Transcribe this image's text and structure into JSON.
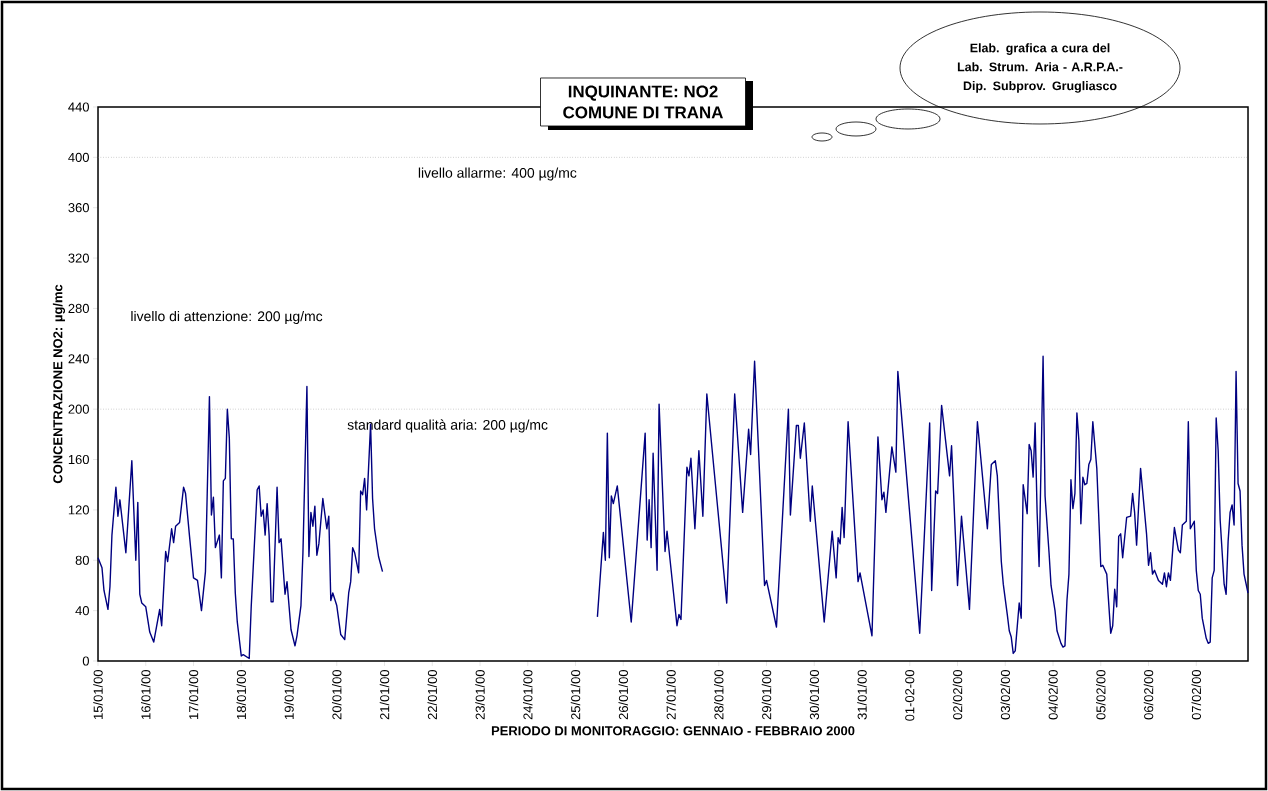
{
  "chart_data": {
    "type": "line",
    "title": "INQUINANTE: NO2",
    "subtitle": "COMUNE DI TRANA",
    "xlabel": "PERIODO DI MONITORAGGIO: GENNAIO - FEBBRAIO 2000",
    "ylabel": "CONCENTRAZIONE NO2:  µg/mc",
    "annotations": [
      "livello di attenzione: 200  µg/mc",
      "Elab. grafica a cura del Lab. Strum. Aria - A.R.P.A.- Dip. Subprov. Grugliasco"
    ],
    "xlim": [
      "2000-01-15T00:00",
      "2000-02-08T02:00"
    ],
    "ylim": [
      0,
      440
    ],
    "yticks": [
      0,
      40,
      80,
      120,
      160,
      200,
      240,
      280,
      320,
      360,
      400,
      440
    ],
    "xticks": [
      {
        "value": "2000-01-15",
        "label": "15/01/00"
      },
      {
        "value": "2000-01-16",
        "label": "16/01/00"
      },
      {
        "value": "2000-01-17",
        "label": "17/01/00"
      },
      {
        "value": "2000-01-18",
        "label": "18/01/00"
      },
      {
        "value": "2000-01-19",
        "label": "19/01/00"
      },
      {
        "value": "2000-01-20",
        "label": "20/01/00"
      },
      {
        "value": "2000-01-21",
        "label": "21/01/00"
      },
      {
        "value": "2000-01-22",
        "label": "22/01/00"
      },
      {
        "value": "2000-01-23",
        "label": "23/01/00"
      },
      {
        "value": "2000-01-24",
        "label": "24/01/00"
      },
      {
        "value": "2000-01-25",
        "label": "25/01/00"
      },
      {
        "value": "2000-01-26",
        "label": "26/01/00"
      },
      {
        "value": "2000-01-27",
        "label": "27/01/00"
      },
      {
        "value": "2000-01-28",
        "label": "28/01/00"
      },
      {
        "value": "2000-01-29",
        "label": "29/01/00"
      },
      {
        "value": "2000-01-30",
        "label": "30/01/00"
      },
      {
        "value": "2000-01-31",
        "label": "31/01/00"
      },
      {
        "value": "2000-02-01",
        "label": "01-02-00"
      },
      {
        "value": "2000-02-02",
        "label": "02/02/00"
      },
      {
        "value": "2000-02-03",
        "label": "03/02/00"
      },
      {
        "value": "2000-02-04",
        "label": "04/02/00"
      },
      {
        "value": "2000-02-05",
        "label": "05/02/00"
      },
      {
        "value": "2000-02-06",
        "label": "06/02/00"
      },
      {
        "value": "2000-02-07",
        "label": "07/02/00"
      }
    ],
    "ref_lines": [
      {
        "axis": "y",
        "value": 400,
        "label": "livello allarme: 400 µg/mc",
        "color": "#808080",
        "line_style": "dotted"
      },
      {
        "axis": "y",
        "value": 200,
        "label": "standard qualità aria: 200 µg/mc",
        "color": "#808080",
        "line_style": "dotted"
      }
    ],
    "series": [
      {
        "color": "#000080",
        "x": [
          "2000-01-15T00:00",
          "2000-01-15T02:00",
          "2000-01-15T03:00",
          "2000-01-15T05:00",
          "2000-01-15T06:00",
          "2000-01-15T07:00",
          "2000-01-15T09:00",
          "2000-01-15T10:00",
          "2000-01-15T11:00",
          "2000-01-15T14:00",
          "2000-01-15T15:00",
          "2000-01-15T17:00",
          "2000-01-15T19:00",
          "2000-01-15T20:00",
          "2000-01-15T21:00",
          "2000-01-15T22:00",
          "2000-01-16T00:00",
          "2000-01-16T02:00",
          "2000-01-16T04:00",
          "2000-01-16T07:00",
          "2000-01-16T08:00",
          "2000-01-16T10:00",
          "2000-01-16T11:00",
          "2000-01-16T13:00",
          "2000-01-16T14:00",
          "2000-01-16T15:00",
          "2000-01-16T17:00",
          "2000-01-16T19:00",
          "2000-01-16T20:00",
          "2000-01-16T22:00",
          "2000-01-17T00:00",
          "2000-01-17T02:00",
          "2000-01-17T04:00",
          "2000-01-17T06:00",
          "2000-01-17T08:00",
          "2000-01-17T09:00",
          "2000-01-17T10:00",
          "2000-01-17T11:00",
          "2000-01-17T13:00",
          "2000-01-17T14:00",
          "2000-01-17T15:00",
          "2000-01-17T16:00",
          "2000-01-17T17:00",
          "2000-01-17T18:00",
          "2000-01-17T19:00",
          "2000-01-17T20:00",
          "2000-01-17T21:00",
          "2000-01-17T22:00",
          "2000-01-18T00:00",
          "2000-01-18T01:00",
          "2000-01-18T04:00",
          "2000-01-18T05:00",
          "2000-01-18T08:00",
          "2000-01-18T09:00",
          "2000-01-18T10:00",
          "2000-01-18T11:00",
          "2000-01-18T12:00",
          "2000-01-18T13:00",
          "2000-01-18T14:00",
          "2000-01-18T15:00",
          "2000-01-18T16:00",
          "2000-01-18T18:00",
          "2000-01-18T19:00",
          "2000-01-18T20:00",
          "2000-01-18T22:00",
          "2000-01-18T23:00",
          "2000-01-19T01:00",
          "2000-01-19T03:00",
          "2000-01-19T04:00",
          "2000-01-19T06:00",
          "2000-01-19T07:00",
          "2000-01-19T09:00",
          "2000-01-19T10:00",
          "2000-01-19T11:00",
          "2000-01-19T12:00",
          "2000-01-19T13:00",
          "2000-01-19T14:00",
          "2000-01-19T15:00",
          "2000-01-19T17:00",
          "2000-01-19T19:00",
          "2000-01-19T20:00",
          "2000-01-19T21:00",
          "2000-01-19T22:00",
          "2000-01-20T00:00",
          "2000-01-20T02:00",
          "2000-01-20T04:00",
          "2000-01-20T06:00",
          "2000-01-20T07:00",
          "2000-01-20T08:00",
          "2000-01-20T09:00",
          "2000-01-20T11:00",
          "2000-01-20T12:00",
          "2000-01-20T13:00",
          "2000-01-20T14:00",
          "2000-01-20T15:00",
          "2000-01-20T17:00",
          "2000-01-20T18:00",
          "2000-01-20T19:00",
          "2000-01-20T21:00",
          "2000-01-20T23:00"
        ],
        "values": [
          82,
          74,
          56,
          41,
          59,
          100,
          138,
          115,
          128,
          86,
          110,
          159,
          80,
          126,
          53,
          46,
          43,
          23,
          15,
          41,
          28,
          87,
          79,
          105,
          94,
          107,
          110,
          138,
          133,
          99,
          66,
          64,
          40,
          71,
          210,
          116,
          130,
          90,
          100,
          66,
          143,
          145,
          200,
          177,
          97,
          97,
          54,
          31,
          4,
          5,
          2,
          43,
          136,
          139,
          115,
          120,
          100,
          125,
          100,
          47,
          47,
          138,
          94,
          97,
          53,
          63,
          25,
          12,
          20,
          44,
          86,
          218,
          83,
          118,
          107,
          123,
          84,
          93,
          129,
          105,
          115,
          48,
          54,
          44,
          21,
          17,
          54,
          63,
          90,
          86,
          70,
          135,
          132,
          145,
          120,
          188,
          129,
          105,
          83,
          71
        ]
      },
      {
        "color": "#000080",
        "x": [
          "2000-01-25T11:00",
          "2000-01-25T14:00",
          "2000-01-25T15:00",
          "2000-01-25T16:00",
          "2000-01-25T17:00",
          "2000-01-25T18:00",
          "2000-01-25T19:00",
          "2000-01-25T21:00",
          "2000-01-26T04:00",
          "2000-01-26T11:00",
          "2000-01-26T12:00",
          "2000-01-26T13:00",
          "2000-01-26T14:00",
          "2000-01-26T15:00",
          "2000-01-26T17:00",
          "2000-01-26T18:00",
          "2000-01-26T21:00",
          "2000-01-26T22:00",
          "2000-01-27T03:00",
          "2000-01-27T04:00",
          "2000-01-27T05:00",
          "2000-01-27T08:00",
          "2000-01-27T09:00",
          "2000-01-27T10:00",
          "2000-01-27T12:00",
          "2000-01-27T14:00",
          "2000-01-27T16:00",
          "2000-01-27T18:00",
          "2000-01-28T04:00",
          "2000-01-28T08:00",
          "2000-01-28T12:00",
          "2000-01-28T15:00",
          "2000-01-28T16:00",
          "2000-01-28T18:00",
          "2000-01-28T23:00",
          "2000-01-29T00:00",
          "2000-01-29T05:00",
          "2000-01-29T11:00",
          "2000-01-29T12:00",
          "2000-01-29T15:00",
          "2000-01-29T16:00",
          "2000-01-29T17:00",
          "2000-01-29T19:00",
          "2000-01-29T22:00",
          "2000-01-29T23:00",
          "2000-01-30T05:00",
          "2000-01-30T09:00",
          "2000-01-30T11:00",
          "2000-01-30T12:00",
          "2000-01-30T13:00",
          "2000-01-30T14:00",
          "2000-01-30T15:00",
          "2000-01-30T17:00",
          "2000-01-30T22:00",
          "2000-01-30T23:00",
          "2000-01-31T05:00",
          "2000-01-31T08:00",
          "2000-01-31T10:00",
          "2000-01-31T11:00",
          "2000-01-31T12:00",
          "2000-01-31T15:00",
          "2000-01-31T17:00",
          "2000-01-31T18:00",
          "2000-02-01T05:00",
          "2000-02-01T10:00",
          "2000-02-01T11:00",
          "2000-02-01T13:00",
          "2000-02-01T14:00",
          "2000-02-01T16:00",
          "2000-02-01T20:00",
          "2000-02-01T21:00",
          "2000-02-02T00:00",
          "2000-02-02T02:00",
          "2000-02-02T06:00",
          "2000-02-02T10:00",
          "2000-02-02T15:00",
          "2000-02-02T16:00",
          "2000-02-02T17:00",
          "2000-02-02T19:00",
          "2000-02-02T20:00",
          "2000-02-02T22:00",
          "2000-02-02T23:00",
          "2000-02-03T01:00",
          "2000-02-03T02:00",
          "2000-02-03T03:00",
          "2000-02-03T04:00",
          "2000-02-03T05:00",
          "2000-02-03T07:00",
          "2000-02-03T08:00",
          "2000-02-03T09:00",
          "2000-02-03T11:00",
          "2000-02-03T12:00",
          "2000-02-03T13:00",
          "2000-02-03T14:00",
          "2000-02-03T15:00",
          "2000-02-03T16:00",
          "2000-02-03T17:00",
          "2000-02-03T19:00",
          "2000-02-03T20:00",
          "2000-02-03T22:00",
          "2000-02-03T23:00",
          "2000-02-04T01:00",
          "2000-02-04T02:00",
          "2000-02-04T04:00",
          "2000-02-04T05:00",
          "2000-02-04T06:00",
          "2000-02-04T07:00",
          "2000-02-04T08:00",
          "2000-02-04T09:00",
          "2000-02-04T10:00",
          "2000-02-04T11:00",
          "2000-02-04T12:00",
          "2000-02-04T13:00",
          "2000-02-04T14:00",
          "2000-02-04T15:00",
          "2000-02-04T16:00",
          "2000-02-04T17:00",
          "2000-02-04T18:00",
          "2000-02-04T19:00",
          "2000-02-04T20:00",
          "2000-02-04T22:00",
          "2000-02-05T00:00",
          "2000-02-05T01:00",
          "2000-02-05T03:00",
          "2000-02-05T05:00",
          "2000-02-05T06:00",
          "2000-02-05T07:00",
          "2000-02-05T08:00",
          "2000-02-05T09:00",
          "2000-02-05T10:00",
          "2000-02-05T11:00",
          "2000-02-05T13:00",
          "2000-02-05T15:00",
          "2000-02-05T16:00",
          "2000-02-05T17:00",
          "2000-02-05T18:00",
          "2000-02-05T20:00",
          "2000-02-05T23:00",
          "2000-02-06T00:00",
          "2000-02-06T01:00",
          "2000-02-06T02:00",
          "2000-02-06T03:00",
          "2000-02-06T05:00",
          "2000-02-06T07:00",
          "2000-02-06T08:00",
          "2000-02-06T09:00",
          "2000-02-06T10:00",
          "2000-02-06T11:00",
          "2000-02-06T13:00",
          "2000-02-06T15:00",
          "2000-02-06T16:00",
          "2000-02-06T17:00",
          "2000-02-06T19:00",
          "2000-02-06T20:00",
          "2000-02-06T21:00",
          "2000-02-06T23:00",
          "2000-02-07T00:00",
          "2000-02-07T01:00",
          "2000-02-07T02:00",
          "2000-02-07T03:00",
          "2000-02-07T05:00",
          "2000-02-07T06:00",
          "2000-02-07T07:00",
          "2000-02-07T08:00",
          "2000-02-07T09:00",
          "2000-02-07T10:00",
          "2000-02-07T11:00",
          "2000-02-07T12:00",
          "2000-02-07T14:00",
          "2000-02-07T15:00",
          "2000-02-07T16:00",
          "2000-02-07T17:00",
          "2000-02-07T18:00",
          "2000-02-07T19:00",
          "2000-02-07T20:00",
          "2000-02-07T21:00",
          "2000-02-07T22:00",
          "2000-02-07T23:00",
          "2000-02-08T00:00",
          "2000-02-08T02:00"
        ],
        "values": [
          35,
          102,
          80,
          181,
          82,
          131,
          125,
          139,
          31,
          181,
          96,
          128,
          90,
          165,
          72,
          204,
          87,
          103,
          28,
          37,
          33,
          154,
          147,
          161,
          105,
          167,
          115,
          212,
          46,
          212,
          118,
          184,
          164,
          238,
          60,
          64,
          27,
          200,
          116,
          187,
          187,
          161,
          189,
          111,
          139,
          31,
          103,
          66,
          98,
          93,
          122,
          98,
          190,
          63,
          70,
          20,
          178,
          128,
          134,
          118,
          170,
          150,
          230,
          22,
          189,
          56,
          135,
          133,
          203,
          147,
          171,
          60,
          115,
          41,
          190,
          105,
          131,
          156,
          159,
          147,
          79,
          61,
          37,
          24,
          19,
          6,
          8,
          46,
          34,
          140,
          117,
          172,
          167,
          146,
          189,
          118,
          75,
          242,
          131,
          86,
          60,
          40,
          24,
          14,
          11,
          12,
          48,
          69,
          144,
          121,
          133,
          197,
          175,
          109,
          146,
          140,
          141,
          156,
          160,
          190,
          153,
          75,
          76,
          69,
          22,
          28,
          57,
          43,
          99,
          101,
          82,
          114,
          115,
          133,
          118,
          92,
          153,
          101,
          76,
          86,
          69,
          72,
          64,
          61,
          70,
          59,
          70,
          64,
          106,
          88,
          86,
          108,
          111,
          190,
          105,
          111,
          72,
          56,
          53,
          34,
          18,
          14,
          15,
          66,
          72,
          193,
          167,
          112,
          61,
          53,
          95,
          118,
          124,
          108,
          230,
          141,
          135,
          92,
          69,
          54
        ]
      }
    ]
  }
}
